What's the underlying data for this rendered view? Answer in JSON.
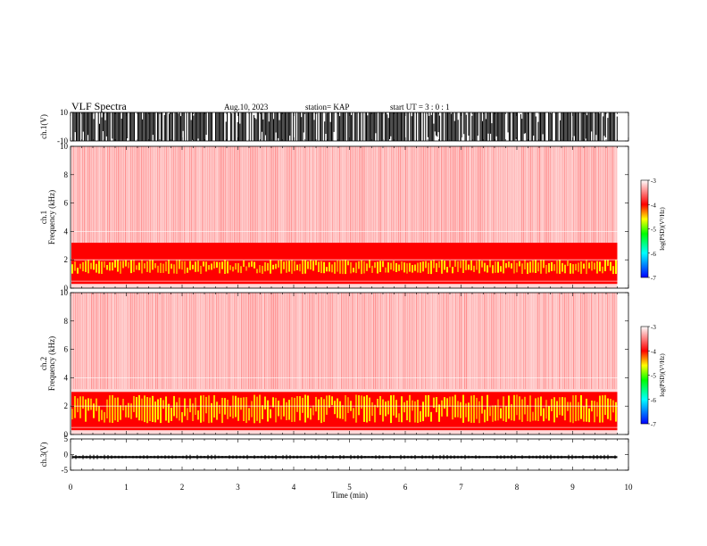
{
  "header": {
    "title": "VLF Spectra",
    "date": "Aug.10, 2023",
    "station": "station= KAP",
    "start_ut": "start  UT  =   3  : 0   : 1"
  },
  "colors": {
    "background": "#ffffff",
    "axis": "#000000",
    "colorscale": [
      "#0000ff",
      "#00ffff",
      "#00ff00",
      "#ffff00",
      "#ff0000",
      "#ffffff"
    ],
    "spectrogram_weak": "#ff6666",
    "spectrogram_strong": "#ff0000",
    "spectrogram_peak": "#ffff00"
  },
  "chart_data": [
    {
      "type": "line",
      "panel": "ch1-waveform",
      "ylabel": "ch.1(V)",
      "yticks": [
        "10",
        "-10"
      ],
      "ylim": [
        -10,
        10
      ],
      "xlim": [
        0,
        10
      ],
      "description_values": {
        "typical_amplitude_V": 10,
        "clipping": "saturated at ±10 V for most of the interval"
      }
    },
    {
      "type": "heatmap",
      "panel": "ch1-spectrogram",
      "ylabel": "ch.1 Frequency (kHz)",
      "yticks": [
        "0",
        "2",
        "4",
        "6",
        "8",
        "10"
      ],
      "ylim": [
        0,
        10
      ],
      "xlim": [
        0,
        9.8
      ],
      "bands": [
        {
          "from_kHz": 0.3,
          "to_kHz": 3.2,
          "level": "strong"
        },
        {
          "from_kHz": 1.0,
          "to_kHz": 2.0,
          "level": "peak"
        },
        {
          "from_kHz": 3.2,
          "to_kHz": 10,
          "level": "weak"
        }
      ],
      "colorbar": {
        "label": "log(PSD)(V²/Hz)",
        "ticks": [
          "-3",
          "-4",
          "-5",
          "-6",
          "-7"
        ],
        "range": [
          -7,
          -3
        ]
      }
    },
    {
      "type": "heatmap",
      "panel": "ch2-spectrogram",
      "ylabel": "ch.2 Frequency (kHz)",
      "yticks": [
        "0",
        "2",
        "4",
        "6",
        "8",
        "10"
      ],
      "ylim": [
        0,
        10
      ],
      "xlim": [
        0,
        9.8
      ],
      "bands": [
        {
          "from_kHz": 0.3,
          "to_kHz": 3.0,
          "level": "strong"
        },
        {
          "from_kHz": 0.8,
          "to_kHz": 2.8,
          "level": "peak"
        },
        {
          "from_kHz": 3.0,
          "to_kHz": 10,
          "level": "weak"
        }
      ],
      "colorbar": {
        "label": "log(PSD)(V²/Hz)",
        "ticks": [
          "-3",
          "-4",
          "-5",
          "-6",
          "-7"
        ],
        "range": [
          -7,
          -3
        ]
      }
    },
    {
      "type": "line",
      "panel": "ch3-waveform",
      "ylabel": "ch.3(V)",
      "yticks": [
        "5",
        "0",
        "-5"
      ],
      "ylim": [
        -5,
        5
      ],
      "xlim": [
        0,
        10
      ],
      "description_values": {
        "mean_V": -0.8,
        "band_halfwidth_V": 0.3
      }
    }
  ],
  "x_axis": {
    "label": "Time (min)",
    "ticks": [
      "0",
      "1",
      "2",
      "3",
      "4",
      "5",
      "6",
      "7",
      "8",
      "9",
      "10"
    ],
    "range": [
      0,
      10
    ]
  }
}
